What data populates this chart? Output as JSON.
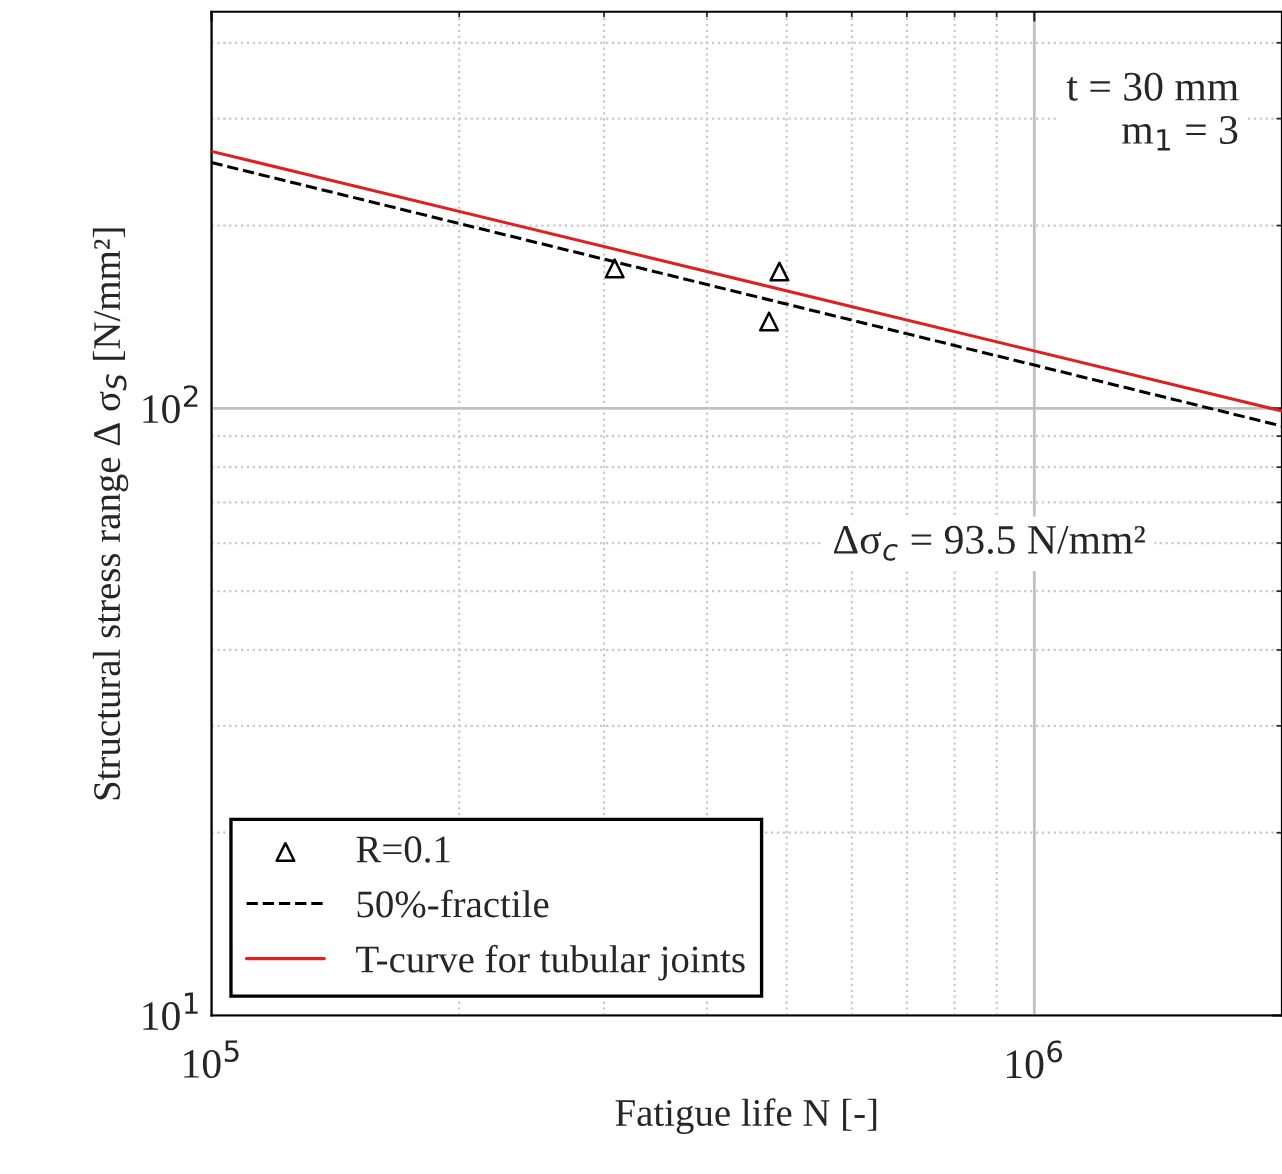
{
  "chart_data": {
    "type": "scatter",
    "xlabel": "Fatigue life N [-]",
    "ylabel": "Structural stress range Δ σ$_{S}$ [N/mm²]",
    "log": "xy",
    "xlim": [
      100000,
      2000000
    ],
    "ylim": [
      10,
      450
    ],
    "xticks": [
      {
        "value": 100000,
        "label": "10$^{5}$"
      },
      {
        "value": 1000000,
        "label": "10$^{6}$"
      }
    ],
    "yticks": [
      {
        "value": 10,
        "label": "10$^{1}$"
      },
      {
        "value": 100,
        "label": "10$^{2}$"
      }
    ],
    "grid": true,
    "legend": "bottom left",
    "series": [
      {
        "name": "R=0.1",
        "color": "#000000",
        "marker": "triangle",
        "x": [
          309000,
          490000,
          476000
        ],
        "values": [
          170,
          168,
          139
        ]
      },
      {
        "name": "50%-fractile",
        "type": "line",
        "color": "#000000",
        "line_style": "dashed",
        "marker": "none",
        "x": [
          100000,
          2000000
        ],
        "values": [
          254,
          93.5
        ]
      },
      {
        "name": "T-curve for tubular joints",
        "type": "line",
        "color": "#e02020",
        "line_style": "solid",
        "marker": "none",
        "x": [
          100000,
          2000000
        ],
        "values": [
          265,
          99
        ]
      }
    ],
    "annotations": [
      "t = 30 mm\n    m$_{1}$ = 3",
      "Δσ$_{c}$ = 93.5 N/mm²"
    ]
  }
}
